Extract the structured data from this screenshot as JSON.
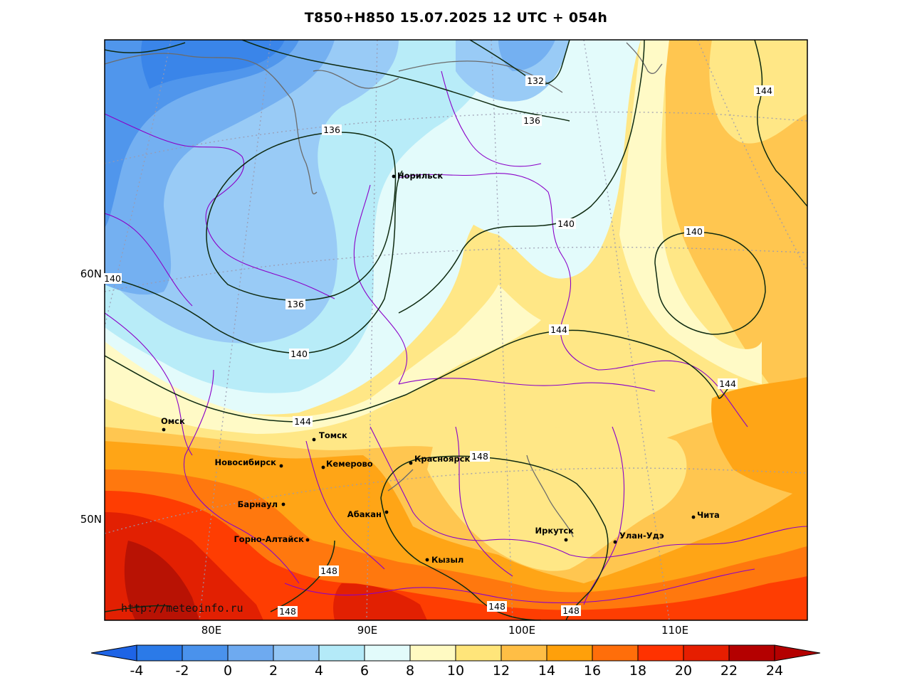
{
  "title": "T850+H850 15.07.2025 12 UTC + 054h",
  "credit": "http://meteoinfo.ru",
  "axes": {
    "lat_labels": [
      "60N",
      "50N"
    ],
    "lon_labels": [
      "80E",
      "90E",
      "100E",
      "110E"
    ]
  },
  "cities": [
    {
      "name": "Норильск"
    },
    {
      "name": "Омск"
    },
    {
      "name": "Томск"
    },
    {
      "name": "Новосибирск"
    },
    {
      "name": "Кемерово"
    },
    {
      "name": "Красноярск"
    },
    {
      "name": "Барнаул"
    },
    {
      "name": "Абакан"
    },
    {
      "name": "Горно-Алтайск"
    },
    {
      "name": "Иркутск"
    },
    {
      "name": "Улан-Удэ"
    },
    {
      "name": "Чита"
    },
    {
      "name": "Кызыл"
    }
  ],
  "contours": [
    {
      "value": "132"
    },
    {
      "value": "136"
    },
    {
      "value": "136"
    },
    {
      "value": "136"
    },
    {
      "value": "140"
    },
    {
      "value": "140"
    },
    {
      "value": "140"
    },
    {
      "value": "140"
    },
    {
      "value": "144"
    },
    {
      "value": "144"
    },
    {
      "value": "144"
    },
    {
      "value": "144"
    },
    {
      "value": "148"
    },
    {
      "value": "148"
    },
    {
      "value": "148"
    },
    {
      "value": "148"
    },
    {
      "value": "148"
    }
  ],
  "colorbar": {
    "labels": [
      "-4",
      "-2",
      "0",
      "2",
      "4",
      "6",
      "8",
      "10",
      "12",
      "14",
      "16",
      "18",
      "20",
      "22",
      "24"
    ],
    "colors": [
      "#1e64e6",
      "#2b7ae8",
      "#4a92ec",
      "#6eaaf0",
      "#93c6f5",
      "#b4eaf8",
      "#e2fbfb",
      "#fffac2",
      "#ffe57a",
      "#ffbe45",
      "#ffa00a",
      "#ff6e0a",
      "#ff3200",
      "#e61e00",
      "#b40000"
    ]
  },
  "fill_colors": {
    "t_m2": "#3a85e9",
    "t_0": "#5096ec",
    "t_2": "#74b0f1",
    "t_4": "#99cbf6",
    "t_6": "#b8ecf8",
    "t_8": "#e3fbfb",
    "t_10": "#fffac6",
    "t_12": "#ffe786",
    "t_14": "#ffc650",
    "t_16": "#ffa516",
    "t_18": "#ff780e",
    "t_20": "#fe3d02",
    "t_22": "#e22002",
    "t_24": "#b81204"
  }
}
